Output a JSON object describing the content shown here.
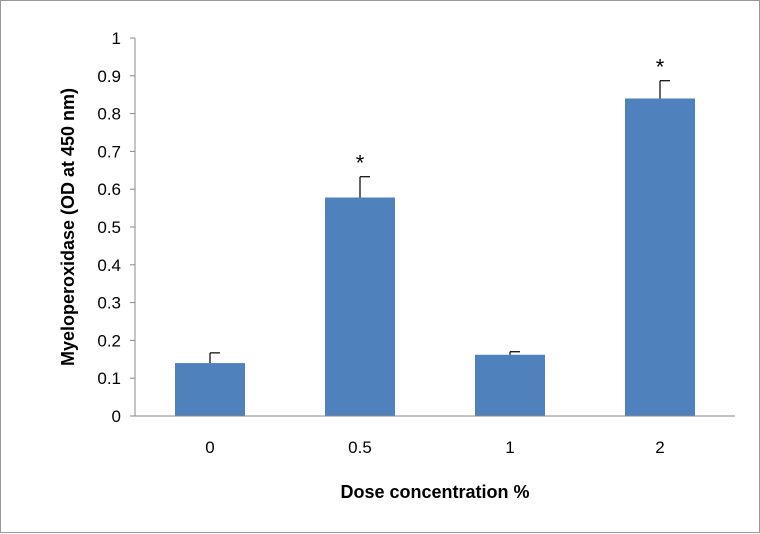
{
  "chart_data": {
    "type": "bar",
    "title": "",
    "xlabel": "Dose concentration %",
    "ylabel": "Myeloperoxidase (OD at 450 nm)",
    "categories": [
      "0",
      "0.5",
      "1",
      "2"
    ],
    "values": [
      0.14,
      0.578,
      0.162,
      0.84
    ],
    "errors": [
      0.027,
      0.055,
      0.008,
      0.047
    ],
    "annotations": [
      "",
      "*",
      "",
      "*"
    ],
    "ylim": [
      0,
      1
    ],
    "yticks": [
      "0",
      "0.1",
      "0.2",
      "0.3",
      "0.4",
      "0.5",
      "0.6",
      "0.7",
      "0.8",
      "0.9",
      "1"
    ],
    "grid": false,
    "legend": "none",
    "bar_color": "#4f81bd"
  }
}
